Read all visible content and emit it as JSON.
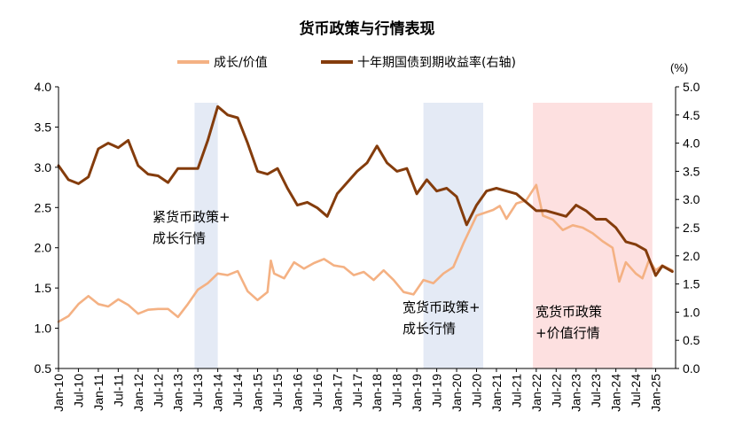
{
  "chart_data": {
    "type": "line",
    "title": "货币政策与行情表现",
    "legend": {
      "placement": "top",
      "entries": [
        "成长/价值",
        "十年期国债到期收益率(右轴)"
      ]
    },
    "left_axis": {
      "ticks": [
        "0.5",
        "1.0",
        "1.5",
        "2.0",
        "2.5",
        "3.0",
        "3.5",
        "4.0"
      ],
      "ylim": [
        0.5,
        4.0
      ]
    },
    "right_axis": {
      "unit": "(%)",
      "ticks": [
        "0.0",
        "0.5",
        "1.0",
        "1.5",
        "2.0",
        "2.5",
        "3.0",
        "3.5",
        "4.0",
        "4.5",
        "5.0"
      ],
      "ylim": [
        0,
        5
      ]
    },
    "x_axis": {
      "start": "2010-01",
      "end": "2025-06",
      "tick_labels": [
        "Jan-10",
        "Jul-10",
        "Jan-11",
        "Jul-11",
        "Jan-12",
        "Jul-12",
        "Jan-13",
        "Jul-13",
        "Jan-14",
        "Jul-14",
        "Jan-15",
        "Jul-15",
        "Jan-16",
        "Jul-16",
        "Jan-17",
        "Jul-17",
        "Jan-18",
        "Jul-18",
        "Jan-19",
        "Jul-19",
        "Jan-20",
        "Jul-20",
        "Jan-21",
        "Jul-21",
        "Jan-22",
        "Jul-22",
        "Jan-23",
        "Jul-23",
        "Jan-24",
        "Jul-24",
        "Jan-25"
      ]
    },
    "shaded_regions": [
      {
        "from": "2013-06",
        "to": "2014-01",
        "color": "#e4eaf5",
        "annotation": [
          "紧货币政策+",
          "成长行情"
        ]
      },
      {
        "from": "2019-03",
        "to": "2020-09",
        "color": "#e4eaf5",
        "annotation": [
          "宽货币政策+",
          "成长行情"
        ]
      },
      {
        "from": "2021-12",
        "to": "2024-12",
        "color": "#fde0e0",
        "annotation": [
          "宽货币政策",
          "+价值行情"
        ]
      }
    ],
    "series": [
      {
        "name": "成长/价值",
        "axis": "left",
        "color": "#f4b183",
        "points": [
          [
            "2010-01",
            1.08
          ],
          [
            "2010-04",
            1.15
          ],
          [
            "2010-07",
            1.3
          ],
          [
            "2010-10",
            1.4
          ],
          [
            "2011-01",
            1.3
          ],
          [
            "2011-04",
            1.27
          ],
          [
            "2011-07",
            1.36
          ],
          [
            "2011-10",
            1.29
          ],
          [
            "2012-01",
            1.18
          ],
          [
            "2012-04",
            1.23
          ],
          [
            "2012-07",
            1.24
          ],
          [
            "2012-10",
            1.24
          ],
          [
            "2013-01",
            1.14
          ],
          [
            "2013-04",
            1.3
          ],
          [
            "2013-07",
            1.48
          ],
          [
            "2013-10",
            1.56
          ],
          [
            "2014-01",
            1.68
          ],
          [
            "2014-04",
            1.66
          ],
          [
            "2014-07",
            1.71
          ],
          [
            "2014-10",
            1.46
          ],
          [
            "2015-01",
            1.35
          ],
          [
            "2015-04",
            1.45
          ],
          [
            "2015-05",
            1.84
          ],
          [
            "2015-06",
            1.68
          ],
          [
            "2015-09",
            1.62
          ],
          [
            "2015-12",
            1.82
          ],
          [
            "2016-03",
            1.74
          ],
          [
            "2016-06",
            1.81
          ],
          [
            "2016-09",
            1.86
          ],
          [
            "2016-12",
            1.78
          ],
          [
            "2017-03",
            1.76
          ],
          [
            "2017-06",
            1.66
          ],
          [
            "2017-09",
            1.7
          ],
          [
            "2017-12",
            1.6
          ],
          [
            "2018-03",
            1.72
          ],
          [
            "2018-06",
            1.6
          ],
          [
            "2018-09",
            1.45
          ],
          [
            "2018-12",
            1.42
          ],
          [
            "2019-03",
            1.6
          ],
          [
            "2019-06",
            1.56
          ],
          [
            "2019-09",
            1.68
          ],
          [
            "2019-12",
            1.76
          ],
          [
            "2020-03",
            2.05
          ],
          [
            "2020-07",
            2.4
          ],
          [
            "2020-12",
            2.47
          ],
          [
            "2021-02",
            2.52
          ],
          [
            "2021-04",
            2.36
          ],
          [
            "2021-07",
            2.55
          ],
          [
            "2021-10",
            2.59
          ],
          [
            "2022-01",
            2.78
          ],
          [
            "2022-03",
            2.4
          ],
          [
            "2022-06",
            2.35
          ],
          [
            "2022-09",
            2.22
          ],
          [
            "2022-12",
            2.28
          ],
          [
            "2023-03",
            2.25
          ],
          [
            "2023-06",
            2.18
          ],
          [
            "2023-09",
            2.08
          ],
          [
            "2023-12",
            2.0
          ],
          [
            "2024-02",
            1.58
          ],
          [
            "2024-04",
            1.82
          ],
          [
            "2024-07",
            1.68
          ],
          [
            "2024-09",
            1.62
          ],
          [
            "2024-11",
            1.85
          ],
          [
            "2025-01",
            1.72
          ],
          [
            "2025-03",
            1.78
          ],
          [
            "2025-06",
            1.72
          ]
        ]
      },
      {
        "name": "十年期国债到期收益率(右轴)",
        "axis": "right",
        "color": "#843c0c",
        "points": [
          [
            "2010-01",
            3.6
          ],
          [
            "2010-04",
            3.35
          ],
          [
            "2010-07",
            3.28
          ],
          [
            "2010-10",
            3.4
          ],
          [
            "2011-01",
            3.9
          ],
          [
            "2011-04",
            4.0
          ],
          [
            "2011-07",
            3.92
          ],
          [
            "2011-10",
            4.05
          ],
          [
            "2012-01",
            3.6
          ],
          [
            "2012-04",
            3.45
          ],
          [
            "2012-07",
            3.42
          ],
          [
            "2012-10",
            3.3
          ],
          [
            "2013-01",
            3.55
          ],
          [
            "2013-04",
            3.55
          ],
          [
            "2013-07",
            3.55
          ],
          [
            "2013-10",
            4.05
          ],
          [
            "2014-01",
            4.65
          ],
          [
            "2014-04",
            4.5
          ],
          [
            "2014-07",
            4.45
          ],
          [
            "2014-10",
            4.0
          ],
          [
            "2015-01",
            3.5
          ],
          [
            "2015-04",
            3.45
          ],
          [
            "2015-07",
            3.55
          ],
          [
            "2015-10",
            3.2
          ],
          [
            "2016-01",
            2.9
          ],
          [
            "2016-04",
            2.95
          ],
          [
            "2016-07",
            2.85
          ],
          [
            "2016-10",
            2.7
          ],
          [
            "2017-01",
            3.1
          ],
          [
            "2017-04",
            3.3
          ],
          [
            "2017-07",
            3.5
          ],
          [
            "2017-10",
            3.65
          ],
          [
            "2018-01",
            3.95
          ],
          [
            "2018-04",
            3.65
          ],
          [
            "2018-07",
            3.5
          ],
          [
            "2018-10",
            3.55
          ],
          [
            "2019-01",
            3.1
          ],
          [
            "2019-04",
            3.35
          ],
          [
            "2019-07",
            3.15
          ],
          [
            "2019-10",
            3.2
          ],
          [
            "2020-01",
            3.05
          ],
          [
            "2020-04",
            2.55
          ],
          [
            "2020-07",
            2.9
          ],
          [
            "2020-10",
            3.15
          ],
          [
            "2021-01",
            3.2
          ],
          [
            "2021-04",
            3.15
          ],
          [
            "2021-07",
            3.1
          ],
          [
            "2021-10",
            2.95
          ],
          [
            "2022-01",
            2.8
          ],
          [
            "2022-04",
            2.8
          ],
          [
            "2022-07",
            2.75
          ],
          [
            "2022-10",
            2.7
          ],
          [
            "2023-01",
            2.9
          ],
          [
            "2023-04",
            2.8
          ],
          [
            "2023-07",
            2.65
          ],
          [
            "2023-10",
            2.65
          ],
          [
            "2024-01",
            2.5
          ],
          [
            "2024-04",
            2.25
          ],
          [
            "2024-07",
            2.2
          ],
          [
            "2024-10",
            2.1
          ],
          [
            "2025-01",
            1.65
          ],
          [
            "2025-03",
            1.82
          ],
          [
            "2025-06",
            1.72
          ]
        ]
      }
    ]
  }
}
